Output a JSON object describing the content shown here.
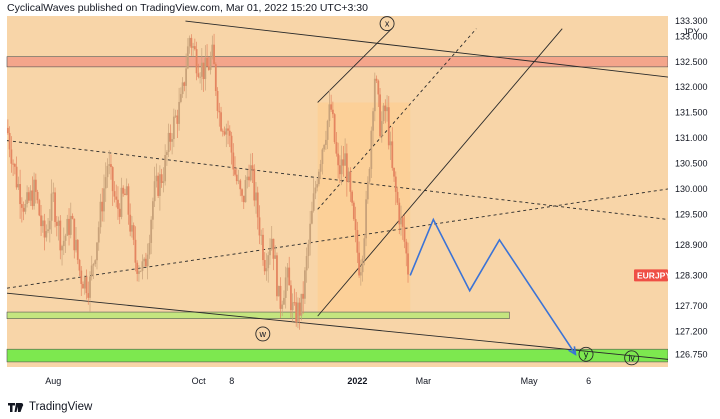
{
  "header": {
    "text": "CyclicalWaves published on TradingView.com, Mar 01, 2022 15:20 UTC+3:30"
  },
  "footer": {
    "brand": "TradingView"
  },
  "colors": {
    "background": "#f8d5a8",
    "axis_panel": "#ffffff",
    "candle_up": "#c8a27a",
    "candle_down": "#e48560",
    "resistance_zone": "#f4a58b",
    "support_zone_upper": "#c4e57f",
    "support_zone_lower": "#7de84f",
    "channel_fill": "#ffcc8a",
    "projection": "#3b73d6",
    "price_label_bg": "#ef4f45",
    "lines": "#2a2a2a"
  },
  "chart_data": {
    "type": "candlestick",
    "symbol_currency": "JPY",
    "price_label": "EURJPY",
    "last_price": 128.3,
    "y_axis": {
      "ticks": [
        133.3,
        133.0,
        132.5,
        132.0,
        131.5,
        131.0,
        130.5,
        130.0,
        129.5,
        128.9,
        128.3,
        127.7,
        127.2,
        126.75
      ],
      "tick_labels": [
        "133.300",
        "133.000",
        "132.500",
        "132.000",
        "131.500",
        "131.000",
        "130.500",
        "130.000",
        "129.500",
        "128.900",
        "128.300",
        "127.700",
        "127.200",
        "126.750"
      ],
      "range": [
        126.5,
        133.4
      ]
    },
    "x_axis": {
      "ticks": [
        "Aug",
        "Oct",
        "8",
        "2022",
        "Mar",
        "May",
        "6"
      ],
      "bold_ticks": [
        "2022"
      ],
      "tick_positions": [
        0.07,
        0.29,
        0.34,
        0.53,
        0.63,
        0.79,
        0.88
      ],
      "range": [
        "Jul 2021",
        "Jul 2022"
      ]
    },
    "price_path": [
      [
        0.0,
        131.2
      ],
      [
        0.014,
        130.2
      ],
      [
        0.028,
        129.6
      ],
      [
        0.042,
        130.0
      ],
      [
        0.056,
        129.0
      ],
      [
        0.07,
        129.8
      ],
      [
        0.083,
        128.9
      ],
      [
        0.097,
        129.4
      ],
      [
        0.111,
        128.3
      ],
      [
        0.125,
        128.1
      ],
      [
        0.139,
        129.3
      ],
      [
        0.152,
        130.5
      ],
      [
        0.166,
        129.6
      ],
      [
        0.18,
        129.9
      ],
      [
        0.194,
        128.6
      ],
      [
        0.208,
        128.4
      ],
      [
        0.222,
        129.9
      ],
      [
        0.236,
        130.3
      ],
      [
        0.25,
        131.2
      ],
      [
        0.264,
        131.7
      ],
      [
        0.276,
        133.0
      ],
      [
        0.288,
        132.5
      ],
      [
        0.3,
        132.3
      ],
      [
        0.311,
        132.6
      ],
      [
        0.322,
        131.4
      ],
      [
        0.334,
        131.2
      ],
      [
        0.345,
        130.3
      ],
      [
        0.356,
        129.7
      ],
      [
        0.367,
        130.5
      ],
      [
        0.378,
        129.6
      ],
      [
        0.39,
        128.6
      ],
      [
        0.401,
        129.1
      ],
      [
        0.412,
        127.7
      ],
      [
        0.423,
        128.3
      ],
      [
        0.434,
        127.5
      ],
      [
        0.446,
        127.7
      ],
      [
        0.457,
        129.0
      ],
      [
        0.468,
        130.2
      ],
      [
        0.479,
        131.0
      ],
      [
        0.49,
        131.6
      ],
      [
        0.501,
        130.3
      ],
      [
        0.512,
        130.6
      ],
      [
        0.523,
        129.4
      ],
      [
        0.534,
        128.4
      ],
      [
        0.545,
        129.8
      ],
      [
        0.556,
        132.3
      ],
      [
        0.565,
        131.2
      ],
      [
        0.574,
        131.6
      ],
      [
        0.583,
        130.3
      ],
      [
        0.592,
        129.6
      ],
      [
        0.601,
        129.0
      ],
      [
        0.608,
        128.3
      ]
    ],
    "projection_path": [
      [
        0.61,
        128.3
      ],
      [
        0.645,
        129.4
      ],
      [
        0.7,
        128.0
      ],
      [
        0.745,
        129.0
      ],
      [
        0.86,
        126.75
      ]
    ],
    "annotations": [
      {
        "label": "x",
        "x": 0.575,
        "y": 133.25
      },
      {
        "label": "w",
        "x": 0.387,
        "y": 127.15
      },
      {
        "label": "y",
        "x": 0.876,
        "y": 126.75
      },
      {
        "label": "iv",
        "x": 0.945,
        "y": 126.68
      }
    ],
    "zones": [
      {
        "name": "resistance",
        "y1": 132.6,
        "y2": 132.4,
        "x1": 0.0,
        "x2": 1.0
      },
      {
        "name": "support_upper",
        "y1": 127.58,
        "y2": 127.45,
        "x1": 0.0,
        "x2": 0.76
      },
      {
        "name": "support_lower",
        "y1": 126.85,
        "y2": 126.6,
        "x1": 0.0,
        "x2": 1.0
      }
    ],
    "trendlines": [
      {
        "style": "solid",
        "points": [
          [
            0.0,
            127.95
          ],
          [
            1.0,
            126.65
          ]
        ]
      },
      {
        "style": "solid",
        "points": [
          [
            0.27,
            133.3
          ],
          [
            1.0,
            132.2
          ]
        ]
      },
      {
        "style": "dashed",
        "points": [
          [
            0.0,
            130.95
          ],
          [
            1.0,
            129.4
          ]
        ]
      },
      {
        "style": "dashed",
        "points": [
          [
            0.0,
            128.05
          ],
          [
            1.0,
            130.0
          ]
        ]
      },
      {
        "style": "solid",
        "points": [
          [
            0.47,
            127.5
          ],
          [
            0.84,
            133.15
          ]
        ]
      },
      {
        "style": "solid",
        "points": [
          [
            0.47,
            131.7
          ],
          [
            0.582,
            133.15
          ]
        ]
      },
      {
        "style": "dashed",
        "points": [
          [
            0.47,
            129.6
          ],
          [
            0.71,
            133.15
          ]
        ]
      }
    ],
    "channel_fill": {
      "x1": 0.47,
      "x2": 0.61,
      "y1": 127.5,
      "y2": 131.7
    }
  }
}
